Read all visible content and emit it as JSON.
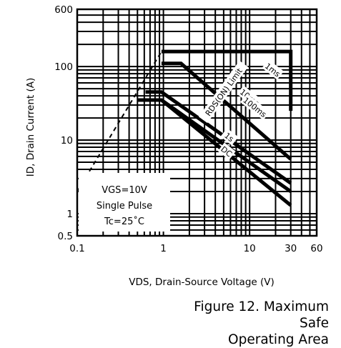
{
  "chart_data": {
    "type": "line",
    "xlabel": "VDS, Drain-Source Voltage (V)",
    "ylabel": "ID, Drain Current (A)",
    "x_scale": "log",
    "y_scale": "log",
    "xlim": [
      0.1,
      60
    ],
    "ylim": [
      0.5,
      600
    ],
    "x_ticks": [
      0.1,
      1,
      10,
      30,
      60
    ],
    "x_tick_labels": [
      "0.1",
      "1",
      "10",
      "30",
      "60"
    ],
    "y_ticks": [
      0.5,
      1,
      10,
      100,
      600
    ],
    "y_tick_labels": [
      "0.5",
      "1",
      "10",
      "100",
      "600"
    ],
    "grid": true,
    "series": [
      {
        "name": "RDS(ON) Limit",
        "style": "dashed",
        "x": [
          0.1,
          0.95
        ],
        "y": [
          2.0,
          160
        ]
      },
      {
        "name": "1ms",
        "x": [
          0.95,
          30,
          30
        ],
        "y": [
          160,
          160,
          25
        ]
      },
      {
        "name": "10ms",
        "x": [
          0.95,
          1.6,
          30
        ],
        "y": [
          110,
          110,
          5.5
        ]
      },
      {
        "name": "100ms",
        "x": [
          0.62,
          0.95,
          30
        ],
        "y": [
          45,
          45,
          2.6
        ]
      },
      {
        "name": "1s",
        "x": [
          0.5,
          0.95,
          30
        ],
        "y": [
          35,
          35,
          2.0
        ]
      },
      {
        "name": "DC",
        "x": [
          0.5,
          0.95,
          30
        ],
        "y": [
          35,
          35,
          1.3
        ]
      }
    ],
    "annotation": [
      "VGS=10V",
      "Single Pulse",
      "Tc=25˚C"
    ]
  },
  "figure_caption": [
    "Figure 12. Maximum Safe",
    "Operating Area"
  ]
}
